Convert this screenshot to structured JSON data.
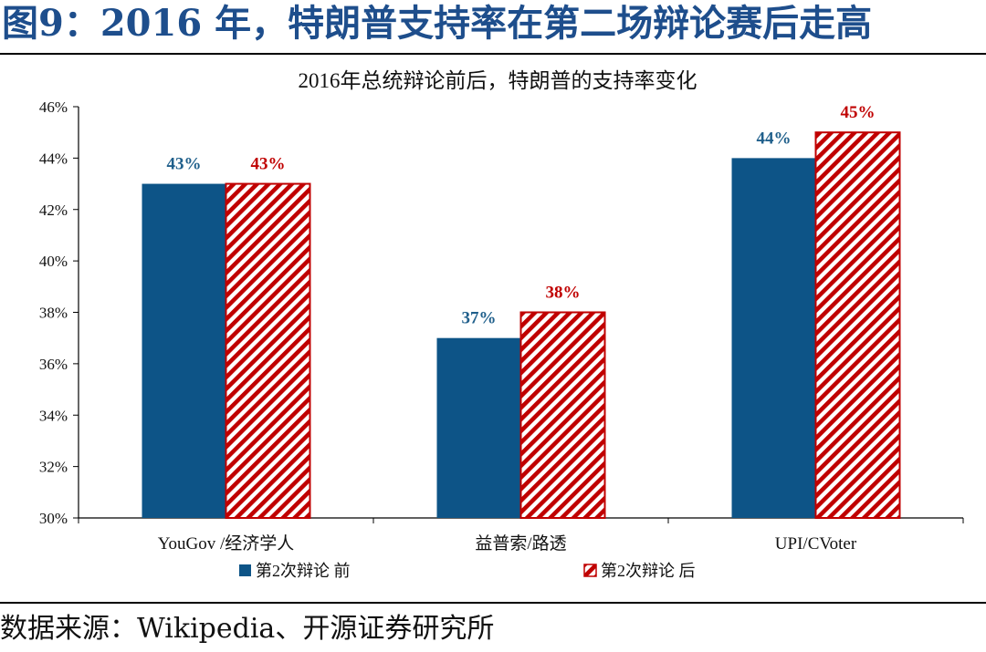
{
  "figure_title": "图9：2016 年，特朗普支持率在第二场辩论赛后走高",
  "source": "数据来源：Wikipedia、开源证券研究所",
  "colors": {
    "before": "#0d5487",
    "after": "#c00000",
    "title": "#1e4e8c",
    "label_before": "#1f5f8b",
    "label_after": "#c00000"
  },
  "chart_data": {
    "type": "bar",
    "title": "2016年总统辩论前后，特朗普的支持率变化",
    "xlabel": "",
    "ylabel": "",
    "categories": [
      "YouGov /经济学人",
      "益普索/路透",
      "UPI/CVoter"
    ],
    "series": [
      {
        "name": "第2次辩论 前",
        "values": [
          43,
          37,
          44
        ],
        "labels": [
          "43%",
          "37%",
          "44%"
        ]
      },
      {
        "name": "第2次辩论 后",
        "values": [
          43,
          38,
          45
        ],
        "labels": [
          "43%",
          "38%",
          "45%"
        ]
      }
    ],
    "ylim": [
      30,
      46
    ],
    "yticks": [
      "30%",
      "32%",
      "34%",
      "36%",
      "38%",
      "40%",
      "42%",
      "44%",
      "46%"
    ],
    "ytick_values": [
      30,
      32,
      34,
      36,
      38,
      40,
      42,
      44,
      46
    ],
    "grid": false,
    "legend_position": "bottom"
  }
}
